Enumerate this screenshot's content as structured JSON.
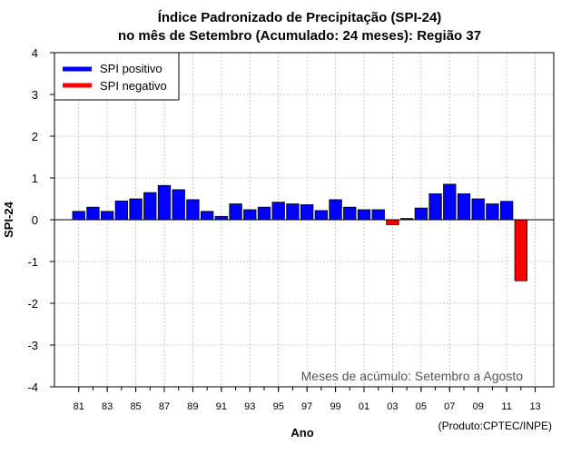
{
  "chart_data": {
    "type": "bar",
    "title_line1": "Índice Padronizado de Precipitação (SPI-24)",
    "title_line2": "no mês de Setembro (Acumulado: 24 meses): Região 37",
    "xlabel": "Ano",
    "ylabel": "SPI-24",
    "ylim": [
      -4,
      4
    ],
    "yticks": [
      4,
      3,
      2,
      1,
      0,
      -1,
      -2,
      -3,
      -4
    ],
    "xlim": [
      1979.3,
      2014.3
    ],
    "xticks": [
      1981,
      1983,
      1985,
      1987,
      1989,
      1991,
      1993,
      1995,
      1997,
      1999,
      2001,
      2003,
      2005,
      2007,
      2009,
      2011,
      2013
    ],
    "xtick_labels": [
      "81",
      "83",
      "85",
      "87",
      "89",
      "91",
      "93",
      "95",
      "97",
      "99",
      "01",
      "03",
      "05",
      "07",
      "09",
      "11",
      "13"
    ],
    "years": [
      1981,
      1982,
      1983,
      1984,
      1985,
      1986,
      1987,
      1988,
      1989,
      1990,
      1991,
      1992,
      1993,
      1994,
      1995,
      1996,
      1997,
      1998,
      1999,
      2000,
      2001,
      2002,
      2003,
      2004,
      2005,
      2006,
      2007,
      2008,
      2009,
      2010,
      2011,
      2012
    ],
    "values": [
      0.2,
      0.3,
      0.2,
      0.45,
      0.5,
      0.65,
      0.82,
      0.72,
      0.48,
      0.2,
      0.08,
      0.38,
      0.24,
      0.3,
      0.42,
      0.38,
      0.36,
      0.22,
      0.48,
      0.3,
      0.24,
      0.24,
      -0.12,
      0.03,
      0.28,
      0.62,
      0.85,
      0.62,
      0.5,
      0.38,
      0.44,
      -1.46
    ],
    "grid": true,
    "legend": {
      "position": "top-left",
      "entries": [
        {
          "label": "SPI positivo",
          "color": "#0000ff"
        },
        {
          "label": "SPI negativo",
          "color": "#ff0000"
        }
      ]
    },
    "positive_color": "#0000ff",
    "negative_color": "#ff0000",
    "annotation": "Meses de acúmulo: Setembro a Agosto",
    "credit": "(Produto:CPTEC/INPE)"
  }
}
